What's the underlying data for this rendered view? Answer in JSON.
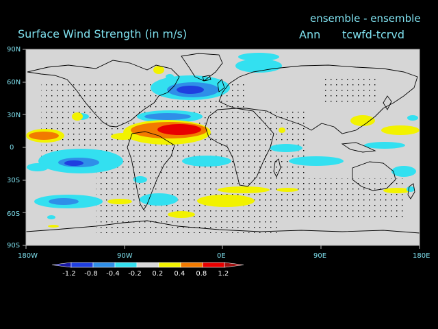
{
  "header": {
    "title": "Surface Wind Strength (in m/s)",
    "ensemble": "ensemble - ensemble",
    "season": "Ann",
    "experiment": "tcwfd-tcrvd"
  },
  "axes": {
    "lat_ticks": [
      "90N",
      "60N",
      "30N",
      "0",
      "30S",
      "60S",
      "90S"
    ],
    "lon_ticks": [
      "180W",
      "90W",
      "0E",
      "90E",
      "180E"
    ]
  },
  "colorbar": {
    "labels": [
      "-1.2",
      "-0.8",
      "-0.4",
      "-0.2",
      "0.2",
      "0.4",
      "0.8",
      "1.2"
    ],
    "colors": [
      "#1a1aa6",
      "#1f3fe0",
      "#2f8fe8",
      "#33e0f0",
      "#d8d8d8",
      "#f2f200",
      "#f27a00",
      "#e80000",
      "#a01010"
    ]
  },
  "map": {
    "land_color": "#d6d6d6",
    "coast_color": "#000000",
    "significance_marker": "dot"
  }
}
